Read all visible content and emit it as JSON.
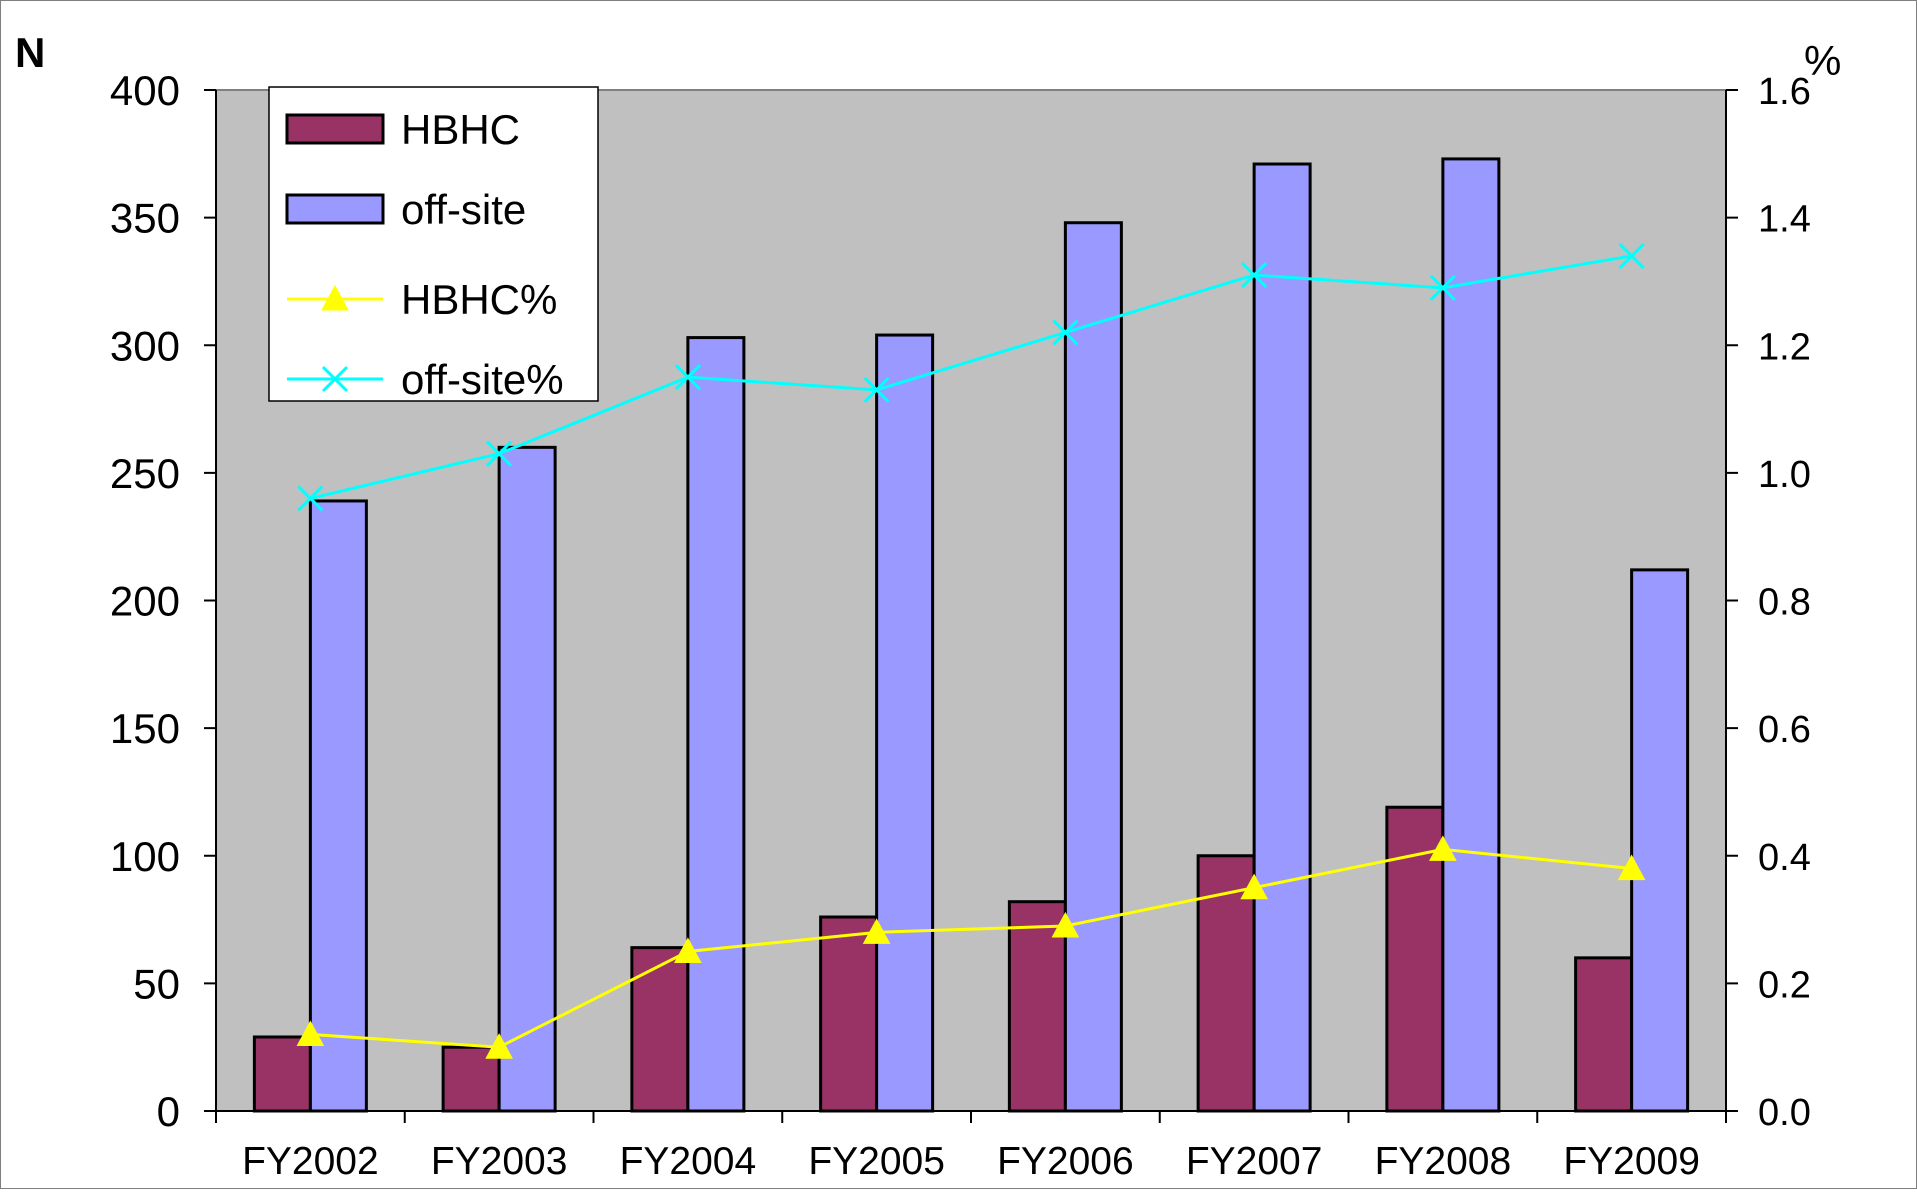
{
  "chart_data": {
    "type": "bar",
    "categories": [
      "FY2002",
      "FY2003",
      "FY2004",
      "FY2005",
      "FY2006",
      "FY2007",
      "FY2008",
      "FY2009"
    ],
    "series": [
      {
        "name": "HBHC",
        "kind": "bar",
        "axis": "left",
        "color": "#993366",
        "values": [
          29,
          25,
          64,
          76,
          82,
          100,
          119,
          60
        ]
      },
      {
        "name": "off-site",
        "kind": "bar",
        "axis": "left",
        "color": "#9999ff",
        "values": [
          239,
          260,
          303,
          304,
          348,
          371,
          373,
          212
        ]
      },
      {
        "name": "HBHC%",
        "kind": "line",
        "marker": "triangle",
        "axis": "right",
        "color": "#ffff00",
        "values": [
          0.12,
          0.1,
          0.25,
          0.28,
          0.29,
          0.35,
          0.41,
          0.38
        ]
      },
      {
        "name": "off-site%",
        "kind": "line",
        "marker": "x",
        "axis": "right",
        "color": "#00ffff",
        "values": [
          0.96,
          1.03,
          1.15,
          1.13,
          1.22,
          1.31,
          1.29,
          1.34
        ]
      }
    ],
    "ylabel_left": "N",
    "ylabel_right": "%",
    "ylim_left": [
      0,
      400
    ],
    "ylim_right": [
      0,
      1.6
    ],
    "yticks_left": [
      "0",
      "50",
      "100",
      "150",
      "200",
      "250",
      "300",
      "350",
      "400"
    ],
    "yticks_right": [
      "0.0",
      "0.2",
      "0.4",
      "0.6",
      "0.8",
      "1.0",
      "1.2",
      "1.4",
      "1.6"
    ],
    "plot_background": "#c0c0c0",
    "grid": false,
    "legend_position": "top-left"
  }
}
